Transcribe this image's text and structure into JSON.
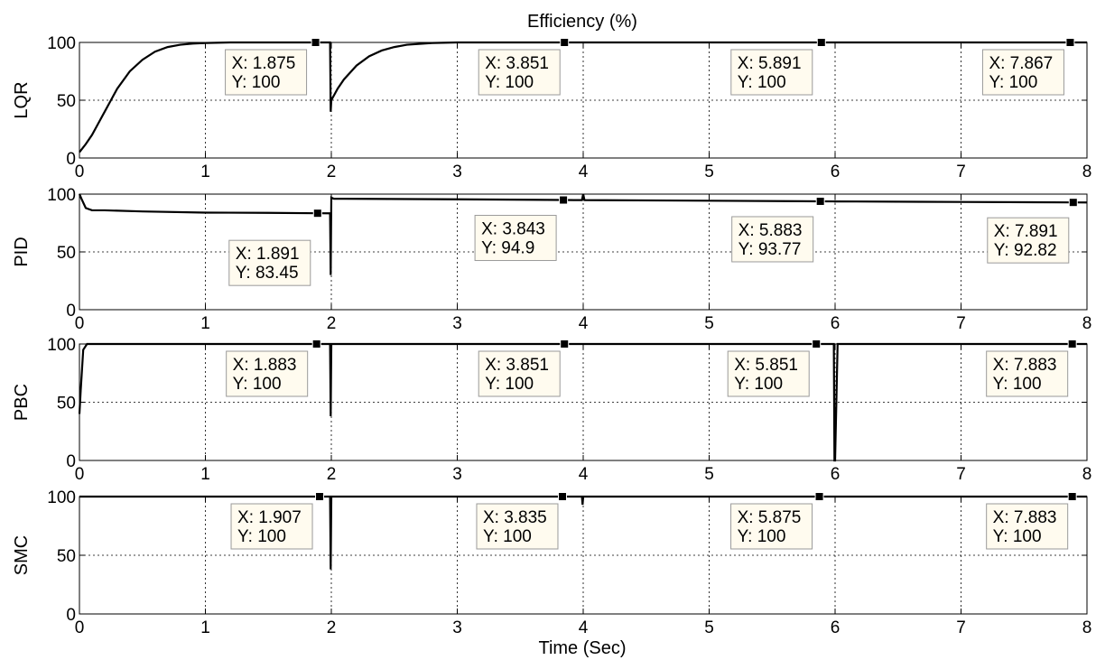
{
  "figure": {
    "title": "Efficiency (%)",
    "xlabel": "Time (Sec)",
    "x_ticks": [
      "0",
      "1",
      "2",
      "3",
      "4",
      "5",
      "6",
      "7",
      "8"
    ],
    "y_ticks": [
      "0",
      "50",
      "100"
    ]
  },
  "chart_data": [
    {
      "type": "line",
      "ylabel": "LQR",
      "xlim": [
        0,
        8
      ],
      "ylim": [
        0,
        100
      ],
      "grid": true,
      "series": [
        {
          "x": [
            0,
            0.05,
            0.1,
            0.15,
            0.2,
            0.25,
            0.3,
            0.4,
            0.5,
            0.6,
            0.7,
            0.8,
            0.9,
            1.0,
            1.2,
            1.5,
            1.875,
            1.99,
            1.995,
            2.0,
            2.05,
            2.1,
            2.2,
            2.3,
            2.4,
            2.5,
            2.6,
            2.8,
            3.0,
            3.4,
            3.851,
            4.0,
            5.891,
            6.0,
            7.867,
            8.0
          ],
          "y": [
            5,
            12,
            20,
            30,
            40,
            50,
            60,
            75,
            85,
            92,
            96,
            98,
            99,
            99.5,
            100,
            100,
            100,
            100,
            40,
            50,
            60,
            68,
            80,
            88,
            93,
            96,
            98,
            99.5,
            100,
            100,
            100,
            100,
            100,
            100,
            100,
            100
          ]
        }
      ],
      "datatips": [
        {
          "x": 1.875,
          "y": 100,
          "label_x": "X: 1.875",
          "label_y": "Y: 100"
        },
        {
          "x": 3.851,
          "y": 100,
          "label_x": "X: 3.851",
          "label_y": "Y: 100"
        },
        {
          "x": 5.891,
          "y": 100,
          "label_x": "X: 5.891",
          "label_y": "Y: 100"
        },
        {
          "x": 7.867,
          "y": 100,
          "label_x": "X: 7.867",
          "label_y": "Y: 100"
        }
      ]
    },
    {
      "type": "line",
      "ylabel": "PID",
      "xlim": [
        0,
        8
      ],
      "ylim": [
        0,
        100
      ],
      "grid": true,
      "series": [
        {
          "x": [
            0,
            0.02,
            0.05,
            0.1,
            0.2,
            0.5,
            1.0,
            1.5,
            1.891,
            1.99,
            1.995,
            2.0,
            2.02,
            2.1,
            3.0,
            3.843,
            3.99,
            4.0,
            4.01,
            5.0,
            5.883,
            5.99,
            6.0,
            6.01,
            7.0,
            7.891,
            8.0
          ],
          "y": [
            100,
            95,
            88,
            86,
            86,
            85,
            84,
            83.8,
            83.45,
            83.4,
            30,
            97,
            96,
            96,
            95.5,
            94.9,
            94.8,
            100,
            94.8,
            94.3,
            93.77,
            93.7,
            93.5,
            93.7,
            93.2,
            92.82,
            92.8
          ]
        }
      ],
      "datatips": [
        {
          "x": 1.891,
          "y": 83.45,
          "label_x": "X: 1.891",
          "label_y": "Y: 83.45"
        },
        {
          "x": 3.843,
          "y": 94.9,
          "label_x": "X: 3.843",
          "label_y": "Y: 94.9"
        },
        {
          "x": 5.883,
          "y": 93.77,
          "label_x": "X: 5.883",
          "label_y": "Y: 93.77"
        },
        {
          "x": 7.891,
          "y": 92.82,
          "label_x": "X: 7.891",
          "label_y": "Y: 92.82"
        }
      ]
    },
    {
      "type": "line",
      "ylabel": "PBC",
      "xlim": [
        0,
        8
      ],
      "ylim": [
        0,
        100
      ],
      "grid": true,
      "series": [
        {
          "x": [
            0,
            0.01,
            0.03,
            0.06,
            0.1,
            1.883,
            1.99,
            1.995,
            2.0,
            2.01,
            3.851,
            5.851,
            5.99,
            5.995,
            6.0,
            6.02,
            7.883,
            8.0
          ],
          "y": [
            40,
            60,
            95,
            100,
            100,
            100,
            100,
            38,
            100,
            100,
            100,
            100,
            100,
            0,
            0,
            100,
            100,
            100
          ]
        }
      ],
      "datatips": [
        {
          "x": 1.883,
          "y": 100,
          "label_x": "X: 1.883",
          "label_y": "Y: 100"
        },
        {
          "x": 3.851,
          "y": 100,
          "label_x": "X: 3.851",
          "label_y": "Y: 100"
        },
        {
          "x": 5.851,
          "y": 100,
          "label_x": "X: 5.851",
          "label_y": "Y: 100"
        },
        {
          "x": 7.883,
          "y": 100,
          "label_x": "X: 7.883",
          "label_y": "Y: 100"
        }
      ]
    },
    {
      "type": "line",
      "ylabel": "SMC",
      "xlim": [
        0,
        8
      ],
      "ylim": [
        0,
        100
      ],
      "grid": true,
      "series": [
        {
          "x": [
            0,
            0.003,
            1.907,
            1.99,
            1.995,
            2.0,
            2.005,
            3.835,
            3.99,
            3.995,
            4.0,
            5.875,
            7.883,
            8.0
          ],
          "y": [
            100,
            100,
            100,
            100,
            38,
            100,
            100,
            100,
            100,
            93,
            100,
            100,
            100,
            100
          ]
        }
      ],
      "datatips": [
        {
          "x": 1.907,
          "y": 100,
          "label_x": "X: 1.907",
          "label_y": "Y: 100"
        },
        {
          "x": 3.835,
          "y": 100,
          "label_x": "X: 3.835",
          "label_y": "Y: 100"
        },
        {
          "x": 5.875,
          "y": 100,
          "label_x": "X: 5.875",
          "label_y": "Y: 100"
        },
        {
          "x": 7.883,
          "y": 100,
          "label_x": "X: 7.883",
          "label_y": "Y: 100"
        }
      ]
    }
  ]
}
